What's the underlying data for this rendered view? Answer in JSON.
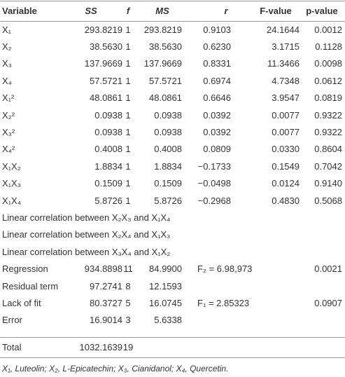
{
  "table": {
    "headers": [
      "Variable",
      "SS",
      "f",
      "MS",
      "r",
      "F-value",
      "p-value"
    ],
    "rows": [
      [
        "X₁",
        "293.8219",
        "1",
        "293.8219",
        "0.9103",
        "24.1644",
        "0.0012"
      ],
      [
        "X₂",
        "38.5630",
        "1",
        "38.5630",
        "0.6230",
        "3.1715",
        "0.1128"
      ],
      [
        "X₃",
        "137.9669",
        "1",
        "137.9669",
        "0.8331",
        "11.3466",
        "0.0098"
      ],
      [
        "X₄",
        "57.5721",
        "1",
        "57.5721",
        "0.6974",
        "4.7348",
        "0.0612"
      ],
      [
        "X₁²",
        "48.0861",
        "1",
        "48.0861",
        "0.6646",
        "3.9547",
        "0.0819"
      ],
      [
        "X₂²",
        "0.0938",
        "1",
        "0.0938",
        "0.0392",
        "0.0077",
        "0.9322"
      ],
      [
        "X₃²",
        "0.0938",
        "1",
        "0.0938",
        "0.0392",
        "0.0077",
        "0.9322"
      ],
      [
        "X₄²",
        "0.4008",
        "1",
        "0.4008",
        "0.0809",
        "0.0330",
        "0.8604"
      ],
      [
        "X₁X₂",
        "1.8834",
        "1",
        "1.8834",
        "−0.1733",
        "0.1549",
        "0.7042"
      ],
      [
        "X₁X₃",
        "0.1509",
        "1",
        "0.1509",
        "−0.0498",
        "0.0124",
        "0.9140"
      ],
      [
        "X₁X₄",
        "5.8726",
        "1",
        "5.8726",
        "−0.2968",
        "0.4830",
        "0.5068"
      ],
      [
        "Linear correlation between X₂X₃ and X₁X₄"
      ],
      [
        "Linear correlation between X₂X₄ and X₁X₃"
      ],
      [
        "Linear correlation between X₃X₄ and X₁X₂"
      ],
      [
        "Regression",
        "934.8898",
        "11",
        "84.9900",
        "F₂ = 6.98,973",
        null,
        "0.0021"
      ],
      [
        "Residual term",
        "97.2741",
        "8",
        "12.1593"
      ],
      [
        "Lack of fit",
        "80.3727",
        "5",
        "16.0745",
        "F₁ = 2.85323",
        null,
        "0.0907"
      ],
      [
        "Error",
        "16.9014",
        "3",
        "5.6338"
      ]
    ],
    "total": [
      "Total",
      "1032.1639",
      "19"
    ],
    "footnote": "X₁, Luteolin; X₂, L-Epicatechin; X₃, Cianidanol; X₄, Quercetin."
  }
}
